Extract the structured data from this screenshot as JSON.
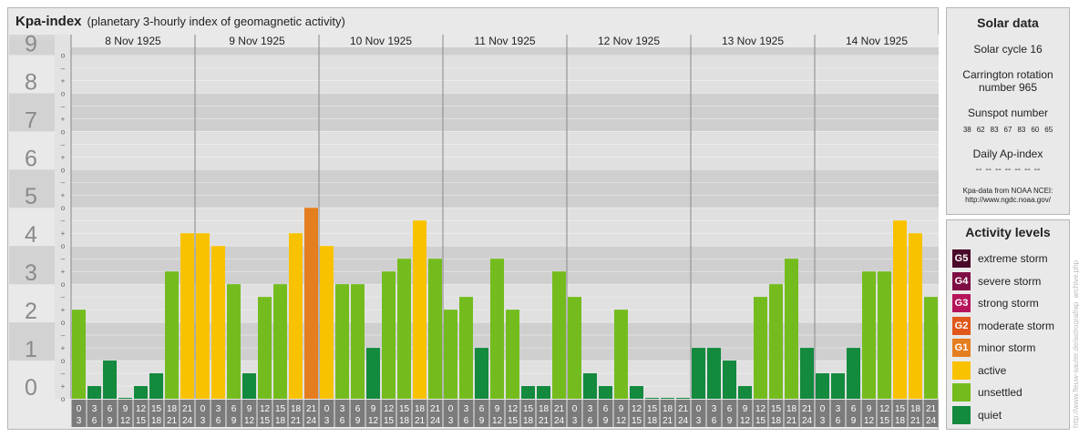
{
  "title": {
    "main": "Kpa-index",
    "sub": "(planetary 3-hourly index of geomagnetic activity)"
  },
  "chart_data": {
    "type": "bar",
    "days": [
      "8 Nov 1925",
      "9 Nov 1925",
      "10 Nov 1925",
      "11 Nov 1925",
      "12 Nov 1925",
      "13 Nov 1925",
      "14 Nov 1925"
    ],
    "ytick_labels": [
      "0",
      "1",
      "2",
      "3",
      "4",
      "5",
      "6",
      "7",
      "8",
      "9"
    ],
    "sub_tick_labels": [
      "o",
      "+",
      "–"
    ],
    "ylim": [
      0,
      9
    ],
    "hour_labels_top": [
      "0",
      "3",
      "6",
      "9",
      "12",
      "15",
      "18",
      "21"
    ],
    "hour_labels_bottom": [
      "3",
      "6",
      "9",
      "12",
      "15",
      "18",
      "21",
      "24"
    ],
    "values": [
      [
        2.333,
        0.333,
        1.0,
        0.0,
        0.333,
        0.667,
        3.333,
        4.333
      ],
      [
        4.333,
        4.0,
        3.0,
        0.667,
        2.667,
        3.0,
        4.333,
        5.0
      ],
      [
        4.0,
        3.0,
        3.0,
        1.333,
        3.333,
        3.667,
        4.667,
        3.667
      ],
      [
        2.333,
        2.667,
        1.333,
        3.667,
        2.333,
        0.333,
        0.333,
        3.333
      ],
      [
        2.667,
        0.667,
        0.333,
        2.333,
        0.333,
        0.0,
        0.0,
        0.0
      ],
      [
        1.333,
        1.333,
        1.0,
        0.333,
        2.667,
        3.0,
        3.667,
        1.333
      ],
      [
        0.667,
        0.667,
        1.333,
        3.333,
        3.333,
        4.667,
        4.333,
        2.667
      ]
    ],
    "colors": {
      "quiet": "#138a3e",
      "unsettled": "#74bc1e",
      "active": "#f9c200",
      "G1": "#e57e1e",
      "G2": "#e0581a",
      "G3": "#b6155a",
      "G4": "#7d0d42",
      "G5": "#4a0a29"
    }
  },
  "solar": {
    "title": "Solar data",
    "cycle": "Solar cycle 16",
    "carrington_1": "Carrington rotation",
    "carrington_2": "number 965",
    "sunspot_label": "Sunspot number",
    "sunspots": [
      "38",
      "62",
      "83",
      "67",
      "83",
      "60",
      "65"
    ],
    "ap_label": "Daily Ap-index",
    "ap_values": [
      "--",
      "--",
      "--",
      "--",
      "--",
      "--",
      "--"
    ],
    "source_1": "Kpa-data from NOAA NCEI:",
    "source_2": "http://www.ngdc.noaa.gov/"
  },
  "legend": {
    "title": "Activity levels",
    "items": [
      {
        "code": "G5",
        "label": "extreme storm",
        "color": "#4a0a29"
      },
      {
        "code": "G4",
        "label": "severe storm",
        "color": "#7d0d42"
      },
      {
        "code": "G3",
        "label": "strong storm",
        "color": "#b6155a"
      },
      {
        "code": "G2",
        "label": "moderate storm",
        "color": "#e0581a"
      },
      {
        "code": "G1",
        "label": "minor storm",
        "color": "#e57e1e"
      },
      {
        "code": "",
        "label": "active",
        "color": "#f9c200"
      },
      {
        "code": "",
        "label": "unsettled",
        "color": "#74bc1e"
      },
      {
        "code": "",
        "label": "quiet",
        "color": "#138a3e"
      }
    ]
  },
  "credit": "http://www.fleuw-sauter.de/astrograf/ap_archive.php"
}
